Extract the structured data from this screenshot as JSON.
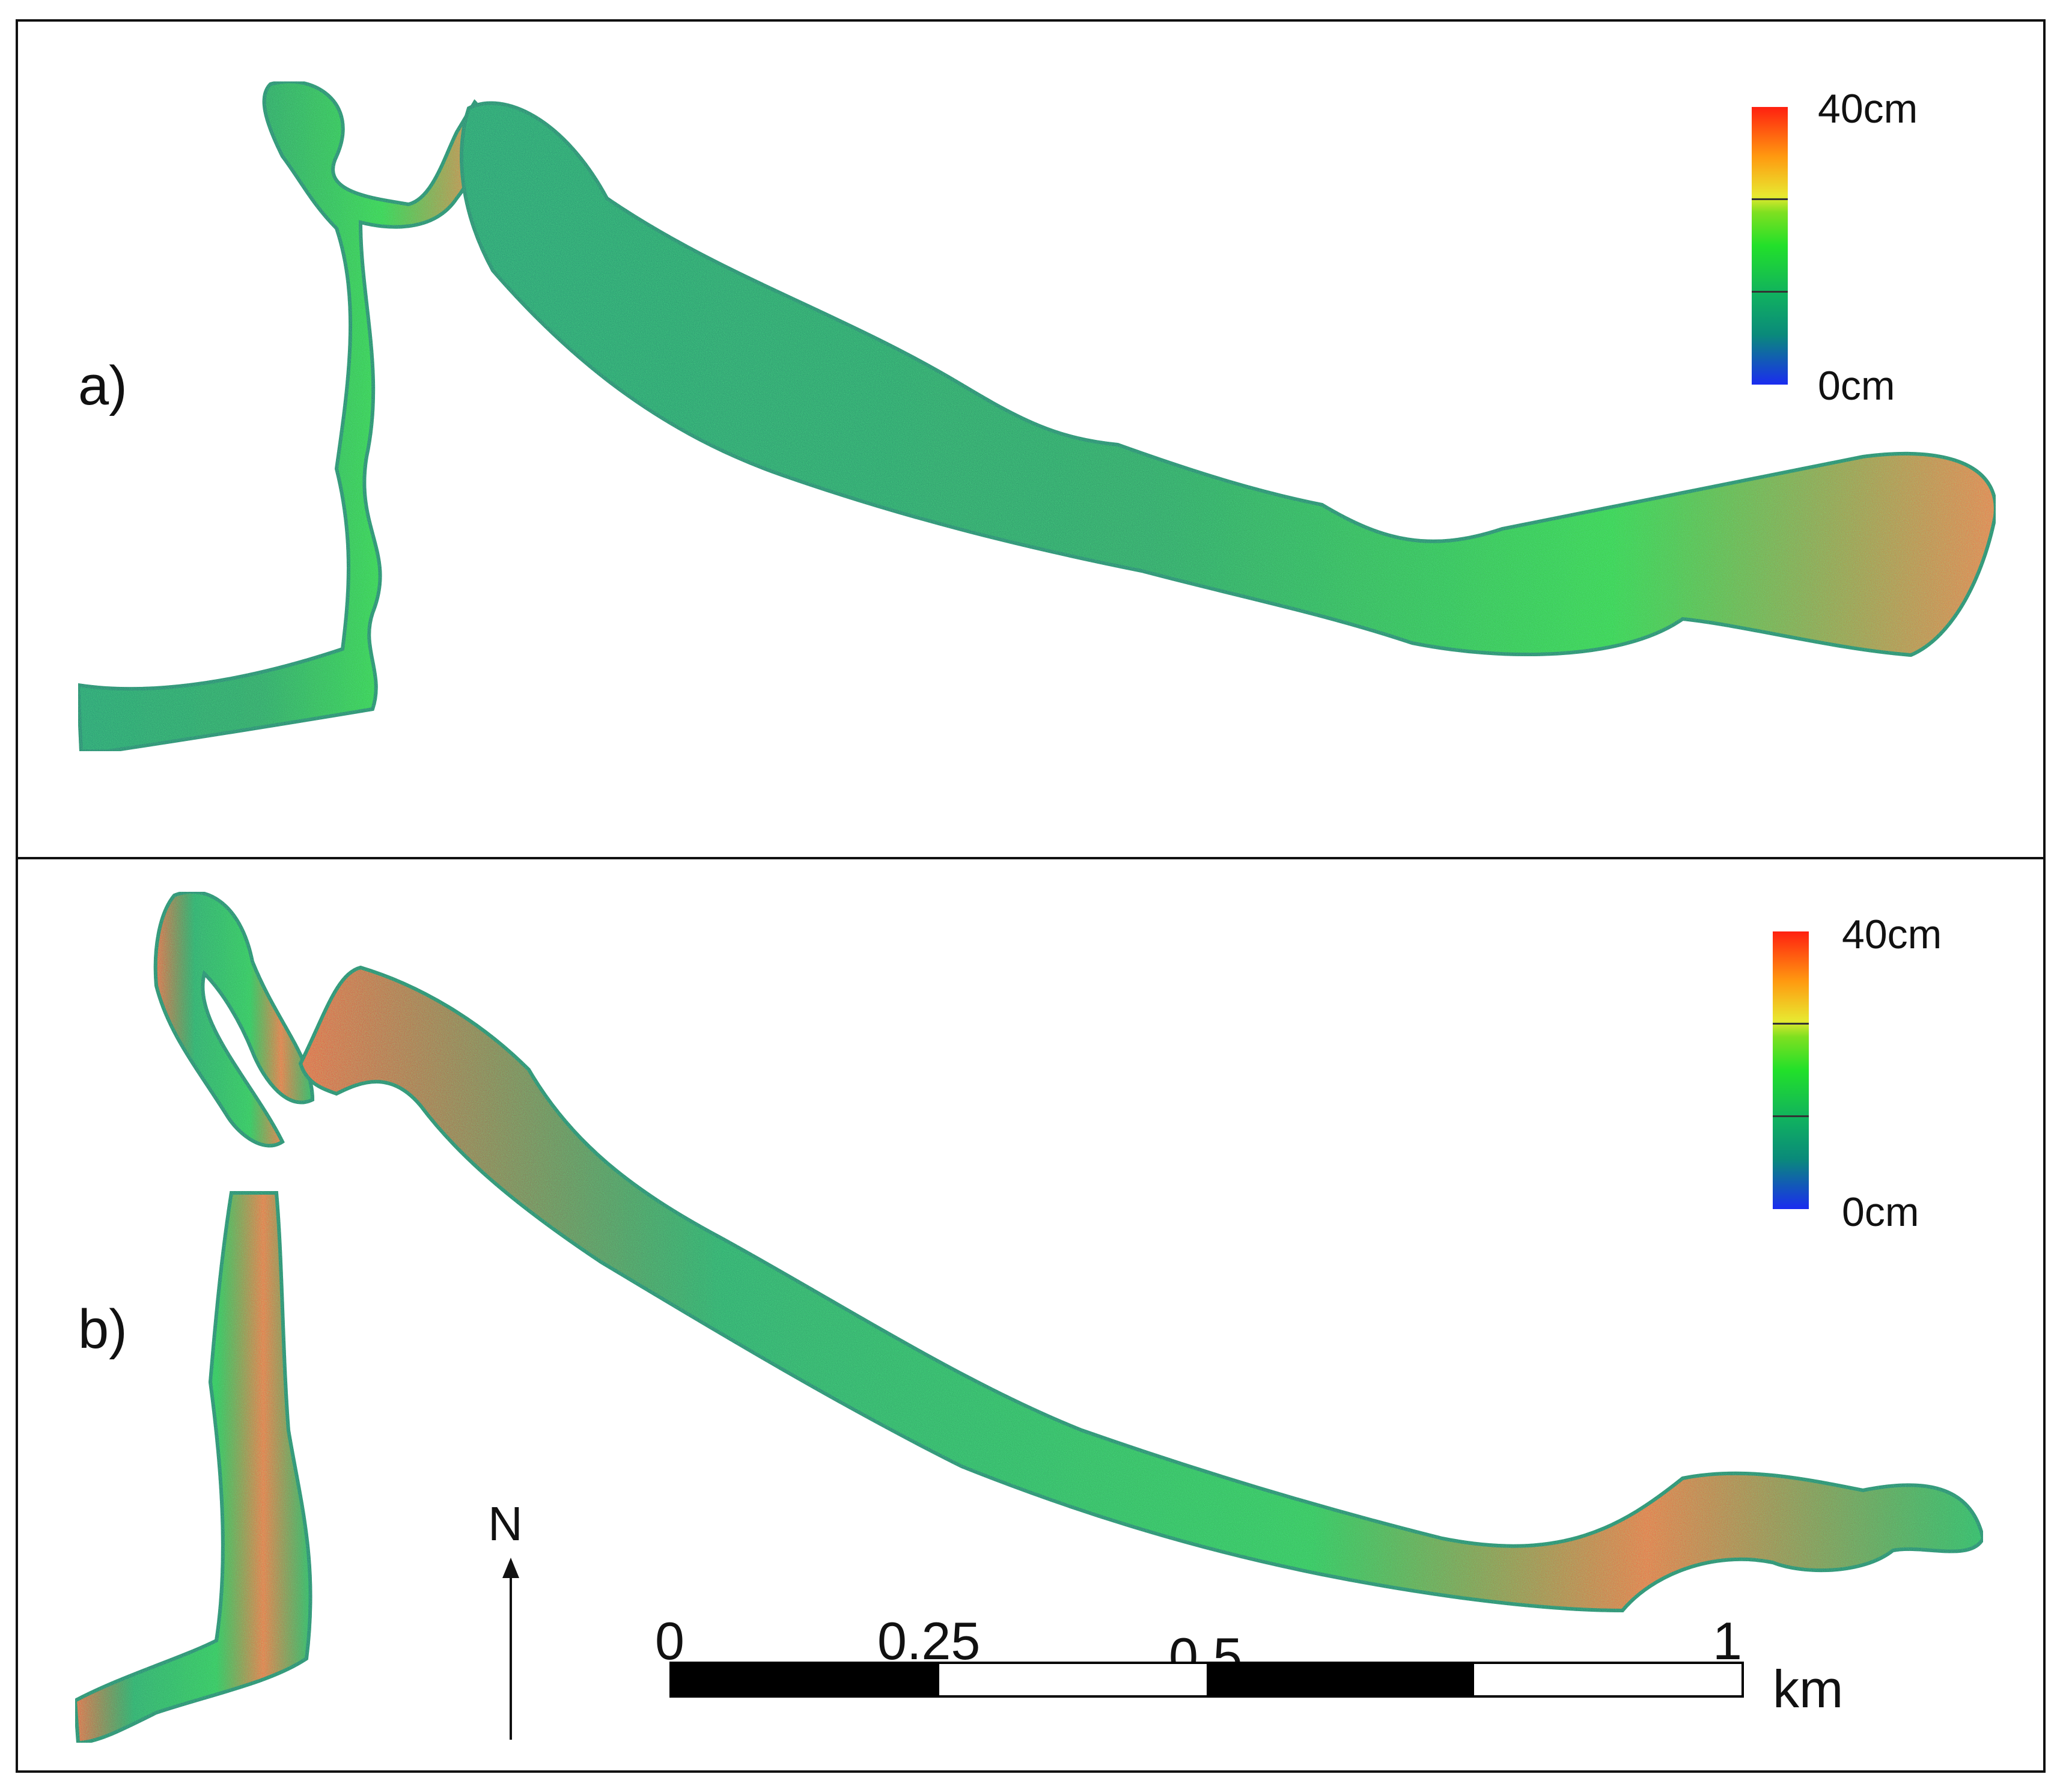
{
  "panels": [
    {
      "label": "a)",
      "legend": {
        "max_label": "40cm",
        "min_label": "0cm"
      },
      "colors": {
        "water_low": "#1a5fd0",
        "water_mid": "#12a060",
        "water_high": "#30e030",
        "hot": "#ff2a10"
      }
    },
    {
      "label": "b)",
      "legend": {
        "max_label": "40cm",
        "min_label": "0cm"
      },
      "colors": {
        "water_low": "#1a5fd0",
        "water_mid": "#12a060",
        "water_high": "#30e030",
        "hot": "#ff2a10"
      }
    }
  ],
  "north_arrow": {
    "label": "N"
  },
  "scale_bar": {
    "ticks": [
      "0",
      "0.25",
      "0.5",
      "1"
    ],
    "unit": "km"
  }
}
